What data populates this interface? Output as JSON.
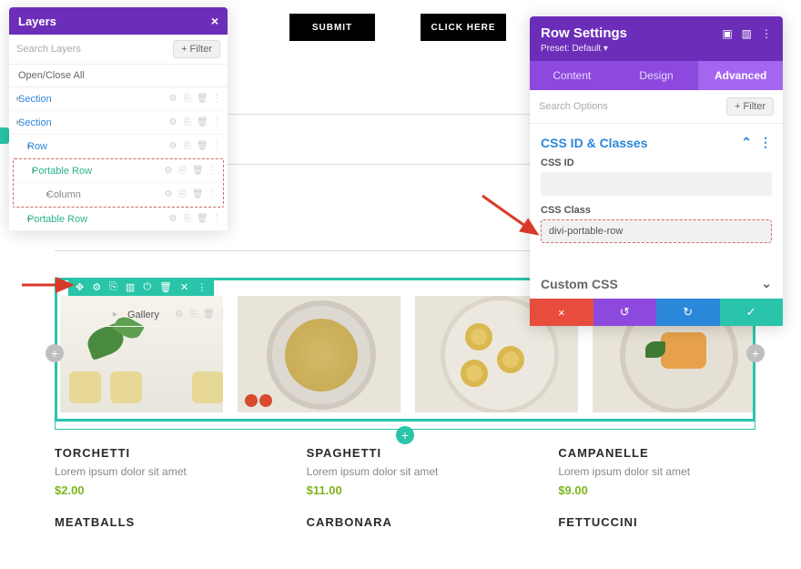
{
  "colors": {
    "purple": "#6c2eb9",
    "purple_light": "#8d49de",
    "purple_tab": "#a466ef",
    "teal": "#29c4a9",
    "blue": "#2b87da",
    "red": "#e84c3d",
    "green_price": "#7bb51e",
    "dashed": "#d86a6a"
  },
  "layers": {
    "title": "Layers",
    "search_placeholder": "Search Layers",
    "filter_label": "+ Filter",
    "open_close": "Open/Close All",
    "items": [
      {
        "label": "Section",
        "type": "section",
        "indent": 22
      },
      {
        "label": "Section",
        "type": "section",
        "indent": 22
      },
      {
        "label": "Row",
        "type": "row-type",
        "indent": 34
      },
      {
        "label": "Portable Row",
        "type": "portable",
        "indent": 34
      },
      {
        "label": "Column",
        "type": "column",
        "indent": 50
      },
      {
        "label": "Gallery",
        "type": "gallery",
        "indent": 62
      },
      {
        "label": "Portable Row",
        "type": "portable",
        "indent": 34
      }
    ]
  },
  "buttons": {
    "submit": "SUBMIT",
    "click_here": "CLICK HERE"
  },
  "settings": {
    "title": "Row Settings",
    "preset": "Preset: Default ▾",
    "tabs": {
      "content": "Content",
      "design": "Design",
      "advanced": "Advanced"
    },
    "search_placeholder": "Search Options",
    "filter_label": "+ Filter",
    "section_css": "CSS ID & Classes",
    "field_css_id": "CSS ID",
    "css_id_value": "",
    "field_css_class": "CSS Class",
    "css_class_value": "divi-portable-row",
    "section_custom": "Custom CSS",
    "chevron_up": "⌃",
    "chevron_down": "⌄",
    "vdots": "⋮"
  },
  "row_toolbar": {
    "icons": [
      "✥",
      "⚙",
      "⎘",
      "▥",
      "⏻",
      "🗑",
      "✕",
      "⋮"
    ]
  },
  "menu": [
    {
      "name": "TORCHETTI",
      "desc": "Lorem ipsum dolor sit amet",
      "price": "$2.00"
    },
    {
      "name": "SPAGHETTI",
      "desc": "Lorem ipsum dolor sit amet",
      "price": "$11.00"
    },
    {
      "name": "CAMPANELLE",
      "desc": "Lorem ipsum dolor sit amet",
      "price": "$9.00"
    },
    {
      "name": "MEATBALLS",
      "desc": "",
      "price": ""
    },
    {
      "name": "CARBONARA",
      "desc": "",
      "price": ""
    },
    {
      "name": "FETTUCCINI",
      "desc": "",
      "price": ""
    }
  ],
  "icons": {
    "close": "×",
    "gear": "⚙",
    "dup": "⎘",
    "trash": "🗑",
    "dots": "⋮",
    "square": "▣",
    "columns": "▥",
    "undo": "↺",
    "redo": "↻",
    "check": "✓",
    "plus": "+"
  }
}
